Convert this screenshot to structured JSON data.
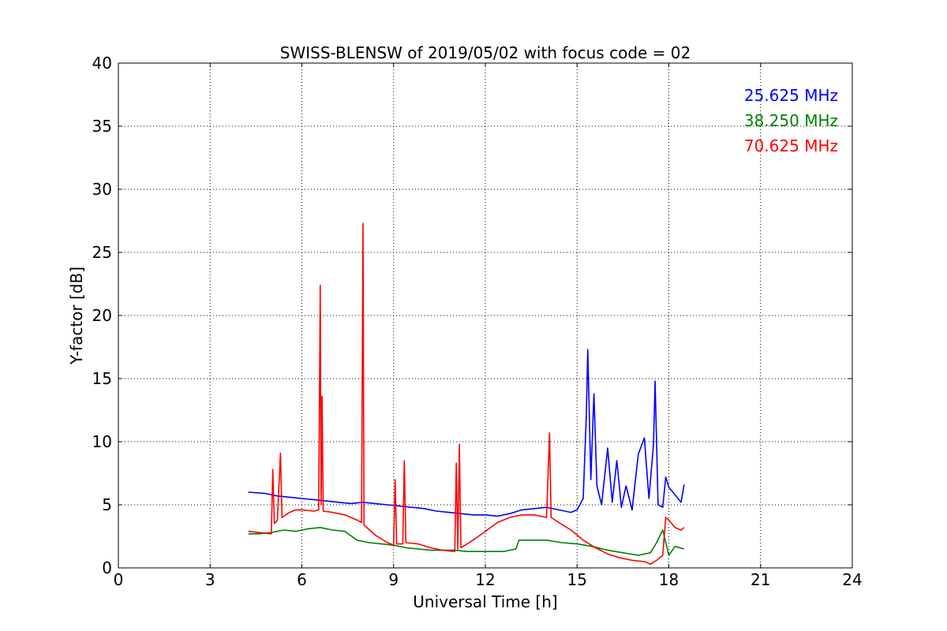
{
  "chart_data": {
    "type": "line",
    "title": "SWISS-BLENSW of 2019/05/02 with focus code = 02",
    "xlabel": "Universal Time [h]",
    "ylabel": "Y-factor [dB]",
    "xlim": [
      0,
      24
    ],
    "ylim": [
      0,
      40
    ],
    "xticks": [
      0,
      3,
      6,
      9,
      12,
      15,
      18,
      21,
      24
    ],
    "yticks": [
      0,
      5,
      10,
      15,
      20,
      25,
      30,
      35,
      40
    ],
    "grid": true,
    "legend_position": "top-right",
    "series": [
      {
        "name": "25.625 MHz",
        "color": "#0000ff",
        "points": [
          [
            4.25,
            6.0
          ],
          [
            4.8,
            5.9
          ],
          [
            5.2,
            5.7
          ],
          [
            5.6,
            5.6
          ],
          [
            6.0,
            5.5
          ],
          [
            6.4,
            5.4
          ],
          [
            6.8,
            5.3
          ],
          [
            7.2,
            5.2
          ],
          [
            7.6,
            5.1
          ],
          [
            8.0,
            5.2
          ],
          [
            8.4,
            5.1
          ],
          [
            8.8,
            5.0
          ],
          [
            9.2,
            4.9
          ],
          [
            9.6,
            4.8
          ],
          [
            10.0,
            4.7
          ],
          [
            10.4,
            4.5
          ],
          [
            10.8,
            4.4
          ],
          [
            11.2,
            4.3
          ],
          [
            11.6,
            4.2
          ],
          [
            12.0,
            4.2
          ],
          [
            12.4,
            4.1
          ],
          [
            12.8,
            4.3
          ],
          [
            13.2,
            4.6
          ],
          [
            13.6,
            4.7
          ],
          [
            14.0,
            4.8
          ],
          [
            14.4,
            4.6
          ],
          [
            14.8,
            4.4
          ],
          [
            15.0,
            4.6
          ],
          [
            15.2,
            5.5
          ],
          [
            15.3,
            12.0
          ],
          [
            15.35,
            17.3
          ],
          [
            15.45,
            7.0
          ],
          [
            15.55,
            13.8
          ],
          [
            15.65,
            6.5
          ],
          [
            15.8,
            5.0
          ],
          [
            16.0,
            9.5
          ],
          [
            16.15,
            5.2
          ],
          [
            16.3,
            8.5
          ],
          [
            16.45,
            4.8
          ],
          [
            16.6,
            6.5
          ],
          [
            16.8,
            4.6
          ],
          [
            17.0,
            9.0
          ],
          [
            17.2,
            10.3
          ],
          [
            17.35,
            5.5
          ],
          [
            17.5,
            9.8
          ],
          [
            17.55,
            14.8
          ],
          [
            17.65,
            5.0
          ],
          [
            17.8,
            4.8
          ],
          [
            17.9,
            7.2
          ],
          [
            18.0,
            6.4
          ],
          [
            18.2,
            5.8
          ],
          [
            18.4,
            5.2
          ],
          [
            18.5,
            6.6
          ]
        ]
      },
      {
        "name": "38.250 MHz",
        "color": "#008000",
        "points": [
          [
            4.25,
            2.7
          ],
          [
            4.6,
            2.7
          ],
          [
            5.0,
            2.8
          ],
          [
            5.4,
            3.0
          ],
          [
            5.8,
            2.9
          ],
          [
            6.2,
            3.1
          ],
          [
            6.6,
            3.2
          ],
          [
            7.0,
            3.0
          ],
          [
            7.4,
            2.9
          ],
          [
            7.8,
            2.2
          ],
          [
            8.2,
            2.0
          ],
          [
            8.6,
            1.9
          ],
          [
            9.0,
            1.8
          ],
          [
            9.4,
            1.6
          ],
          [
            9.8,
            1.5
          ],
          [
            10.2,
            1.4
          ],
          [
            10.6,
            1.4
          ],
          [
            11.0,
            1.4
          ],
          [
            11.4,
            1.3
          ],
          [
            11.8,
            1.3
          ],
          [
            12.2,
            1.3
          ],
          [
            12.6,
            1.3
          ],
          [
            13.0,
            1.5
          ],
          [
            13.1,
            2.2
          ],
          [
            13.5,
            2.2
          ],
          [
            14.0,
            2.2
          ],
          [
            14.5,
            2.0
          ],
          [
            15.0,
            1.9
          ],
          [
            15.5,
            1.7
          ],
          [
            16.0,
            1.4
          ],
          [
            16.5,
            1.2
          ],
          [
            17.0,
            1.0
          ],
          [
            17.4,
            1.2
          ],
          [
            17.6,
            2.0
          ],
          [
            17.8,
            3.0
          ],
          [
            18.0,
            1.0
          ],
          [
            18.2,
            1.7
          ],
          [
            18.5,
            1.5
          ]
        ]
      },
      {
        "name": "70.625 MHz",
        "color": "#ff0000",
        "points": [
          [
            4.25,
            2.9
          ],
          [
            4.6,
            2.8
          ],
          [
            5.0,
            2.7
          ],
          [
            5.05,
            7.8
          ],
          [
            5.1,
            3.5
          ],
          [
            5.2,
            3.8
          ],
          [
            5.3,
            9.1
          ],
          [
            5.35,
            4.0
          ],
          [
            5.6,
            4.4
          ],
          [
            5.8,
            4.6
          ],
          [
            6.0,
            4.6
          ],
          [
            6.4,
            4.5
          ],
          [
            6.55,
            4.6
          ],
          [
            6.6,
            22.4
          ],
          [
            6.63,
            5.0
          ],
          [
            6.66,
            13.6
          ],
          [
            6.7,
            4.5
          ],
          [
            7.0,
            4.4
          ],
          [
            7.4,
            4.2
          ],
          [
            7.8,
            3.8
          ],
          [
            7.95,
            3.6
          ],
          [
            8.0,
            27.3
          ],
          [
            8.03,
            3.4
          ],
          [
            8.4,
            2.6
          ],
          [
            8.8,
            2.0
          ],
          [
            9.0,
            1.8
          ],
          [
            9.05,
            7.0
          ],
          [
            9.1,
            1.9
          ],
          [
            9.3,
            1.9
          ],
          [
            9.35,
            8.5
          ],
          [
            9.4,
            2.0
          ],
          [
            9.8,
            1.9
          ],
          [
            10.2,
            1.6
          ],
          [
            10.6,
            1.4
          ],
          [
            11.0,
            1.3
          ],
          [
            11.05,
            8.3
          ],
          [
            11.1,
            1.5
          ],
          [
            11.15,
            9.8
          ],
          [
            11.2,
            1.6
          ],
          [
            11.6,
            2.2
          ],
          [
            12.0,
            2.9
          ],
          [
            12.4,
            3.6
          ],
          [
            12.8,
            4.0
          ],
          [
            13.2,
            4.2
          ],
          [
            13.6,
            4.2
          ],
          [
            14.0,
            4.0
          ],
          [
            14.1,
            10.7
          ],
          [
            14.15,
            4.0
          ],
          [
            14.4,
            3.6
          ],
          [
            14.8,
            3.0
          ],
          [
            15.2,
            2.2
          ],
          [
            15.6,
            1.6
          ],
          [
            16.0,
            1.1
          ],
          [
            16.4,
            0.8
          ],
          [
            16.8,
            0.6
          ],
          [
            17.2,
            0.5
          ],
          [
            17.4,
            0.3
          ],
          [
            17.6,
            0.6
          ],
          [
            17.8,
            1.0
          ],
          [
            17.9,
            4.0
          ],
          [
            18.0,
            3.8
          ],
          [
            18.2,
            3.2
          ],
          [
            18.4,
            3.0
          ],
          [
            18.5,
            3.2
          ]
        ]
      }
    ]
  }
}
